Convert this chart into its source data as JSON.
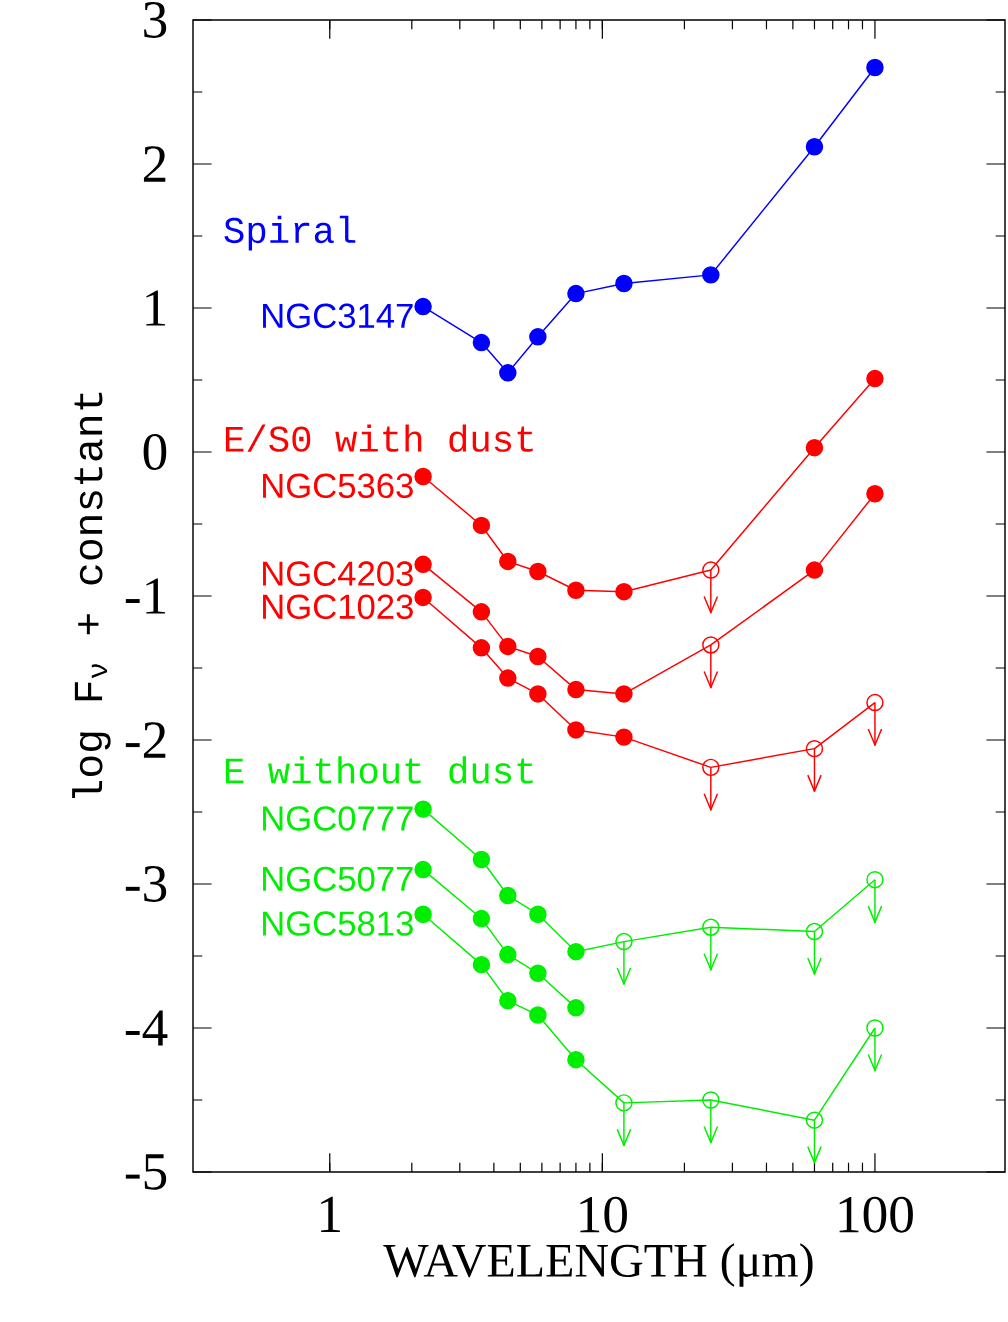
{
  "chart_data": {
    "type": "line",
    "xlabel": "WAVELENGTH (μm)",
    "ylabel": "log F$_{ν}$ + constant",
    "annotations": [
      "Spiral",
      "E/S0 with dust",
      "E without dust"
    ],
    "x": [
      2.2,
      3.6,
      4.5,
      5.8,
      8,
      12,
      25,
      60,
      100
    ],
    "xlim": [
      0.315,
      300
    ],
    "xticks": [
      1,
      10,
      100
    ],
    "ylim": [
      -5,
      3
    ],
    "yticks": [
      -5,
      {
        "value": -4.5,
        "label": null
      },
      -4,
      {
        "value": -3.5,
        "label": null
      },
      -3,
      {
        "value": -2.5,
        "label": null
      },
      -2,
      {
        "value": -1.5,
        "label": null
      },
      -1,
      {
        "value": -0.5,
        "label": null
      },
      0,
      {
        "value": 0.5,
        "label": null
      },
      1,
      {
        "value": 1.5,
        "label": null
      },
      2,
      {
        "value": 2.5,
        "label": null
      },
      3
    ],
    "log": "x",
    "legend": false,
    "grid": false,
    "marker": "circle",
    "series": [
      {
        "name": "NGC3147",
        "marker": "none",
        "color": "#0000ff",
        "values": [
          1.01,
          0.76,
          0.55,
          0.8,
          1.1,
          1.17,
          1.23,
          2.12,
          2.67
        ]
      },
      {
        "type": "scatter",
        "color": "#0000ff",
        "values": [
          1.01,
          0.76,
          0.55,
          0.8,
          1.1,
          1.17,
          1.23,
          2.12,
          2.67
        ]
      },
      {
        "name": "NGC5363",
        "marker": "none",
        "color": "#ff0000",
        "values": [
          -0.17,
          -0.51,
          -0.76,
          -0.83,
          -0.96,
          -0.97,
          -0.82,
          0.03,
          0.51
        ]
      },
      {
        "type": "scatter",
        "color": "#ff0000",
        "values": [
          -0.17,
          -0.51,
          -0.76,
          -0.83,
          -0.96,
          -0.97,
          null,
          0.03,
          0.51
        ]
      },
      {
        "type": "scatter",
        "color": "#ff0000",
        "values": [
          null,
          null,
          null,
          null,
          null,
          null,
          -0.82,
          null,
          null
        ],
        "errors": [
          null,
          null,
          null,
          null,
          null,
          null,
          [
            -1.12,
            -0.82
          ],
          null,
          null
        ]
      },
      {
        "name": "NGC4203",
        "marker": "none",
        "color": "#ff0000",
        "values": [
          -0.78,
          -1.11,
          -1.35,
          -1.42,
          -1.65,
          -1.68,
          -1.34,
          -0.82,
          -0.29
        ]
      },
      {
        "type": "scatter",
        "color": "#ff0000",
        "values": [
          -0.78,
          -1.11,
          -1.35,
          -1.42,
          -1.65,
          -1.68,
          null,
          -0.82,
          -0.29
        ]
      },
      {
        "type": "scatter",
        "color": "#ff0000",
        "values": [
          null,
          null,
          null,
          null,
          null,
          null,
          -1.34,
          null,
          null
        ],
        "errors": [
          null,
          null,
          null,
          null,
          null,
          null,
          [
            -1.64,
            -1.34
          ],
          null,
          null
        ]
      },
      {
        "name": "NGC1023",
        "marker": "none",
        "color": "#ff0000",
        "values": [
          -1.01,
          -1.36,
          -1.57,
          -1.68,
          -1.93,
          -1.98,
          -2.19,
          -2.06,
          -1.74
        ]
      },
      {
        "type": "scatter",
        "color": "#ff0000",
        "values": [
          -1.01,
          -1.36,
          -1.57,
          -1.68,
          -1.93,
          -1.98,
          null,
          null,
          null
        ]
      },
      {
        "type": "scatter",
        "color": "#ff0000",
        "values": [
          null,
          null,
          null,
          null,
          null,
          null,
          -2.19,
          -2.06,
          -1.74
        ],
        "errors": [
          null,
          null,
          null,
          null,
          null,
          null,
          [
            -2.49,
            -2.19
          ],
          [
            -2.36,
            -2.06
          ],
          [
            -2.04,
            -1.74
          ]
        ]
      },
      {
        "name": "NGC0777",
        "marker": "none",
        "color": "#00ee00",
        "values": [
          -2.48,
          -2.83,
          -3.08,
          -3.21,
          -3.47,
          -3.4,
          -3.3,
          -3.33,
          -2.97
        ]
      },
      {
        "type": "scatter",
        "color": "#00ee00",
        "values": [
          -2.48,
          -2.83,
          -3.08,
          -3.21,
          -3.47,
          null,
          null,
          null,
          null
        ]
      },
      {
        "type": "scatter",
        "color": "#00ee00",
        "values": [
          null,
          null,
          null,
          null,
          null,
          -3.4,
          -3.3,
          -3.33,
          -2.97
        ],
        "errors": [
          null,
          null,
          null,
          null,
          null,
          [
            -3.7,
            -3.4
          ],
          [
            -3.6,
            -3.3
          ],
          [
            -3.63,
            -3.33
          ],
          [
            -3.27,
            -2.97
          ]
        ]
      },
      {
        "name": "NGC5077",
        "marker": "none",
        "color": "#00ee00",
        "values": [
          -2.9,
          -3.24,
          -3.49,
          -3.62,
          -3.86,
          null,
          null,
          null,
          null
        ]
      },
      {
        "type": "scatter",
        "color": "#00ee00",
        "values": [
          -2.9,
          -3.24,
          -3.49,
          -3.62,
          -3.86,
          null,
          null,
          null,
          null
        ]
      },
      {
        "name": "NGC5813",
        "marker": "none",
        "color": "#00ee00",
        "values": [
          -3.21,
          -3.56,
          -3.81,
          -3.91,
          -4.22,
          -4.52,
          -4.5,
          -4.64,
          -4.0
        ]
      },
      {
        "type": "scatter",
        "color": "#00ee00",
        "values": [
          -3.21,
          -3.56,
          -3.81,
          -3.91,
          -4.22,
          null,
          null,
          null,
          null
        ]
      },
      {
        "type": "scatter",
        "color": "#00ee00",
        "values": [
          null,
          null,
          null,
          null,
          null,
          -4.52,
          -4.5,
          -4.64,
          -4.0
        ],
        "errors": [
          null,
          null,
          null,
          null,
          null,
          [
            -4.82,
            -4.52
          ],
          [
            -4.8,
            -4.5
          ],
          [
            -4.94,
            -4.64
          ],
          [
            -4.3,
            -4.0
          ]
        ]
      }
    ]
  }
}
